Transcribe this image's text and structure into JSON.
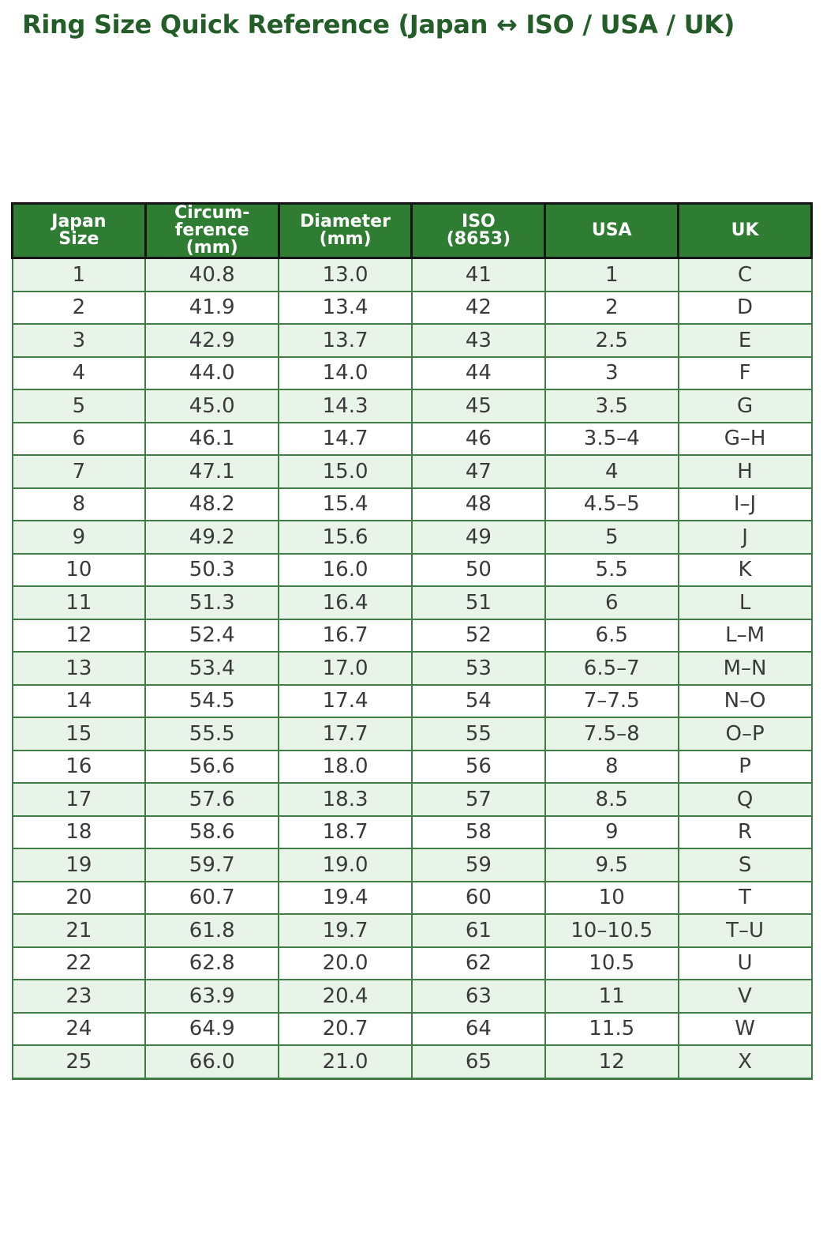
{
  "chart_data": {
    "type": "table",
    "title": "Ring Size Quick Reference (Japan ↔ ISO / USA / UK)",
    "columns": [
      {
        "key": "japan-size",
        "label": "Japan\nSize"
      },
      {
        "key": "circumference",
        "label": "Circum-\nference\n(mm)"
      },
      {
        "key": "diameter",
        "label": "Diameter\n(mm)"
      },
      {
        "key": "iso",
        "label": "ISO\n(8653)"
      },
      {
        "key": "usa",
        "label": "USA"
      },
      {
        "key": "uk",
        "label": "UK"
      }
    ],
    "rows": [
      [
        "1",
        "40.8",
        "13.0",
        "41",
        "1",
        "C"
      ],
      [
        "2",
        "41.9",
        "13.4",
        "42",
        "2",
        "D"
      ],
      [
        "3",
        "42.9",
        "13.7",
        "43",
        "2.5",
        "E"
      ],
      [
        "4",
        "44.0",
        "14.0",
        "44",
        "3",
        "F"
      ],
      [
        "5",
        "45.0",
        "14.3",
        "45",
        "3.5",
        "G"
      ],
      [
        "6",
        "46.1",
        "14.7",
        "46",
        "3.5–4",
        "G–H"
      ],
      [
        "7",
        "47.1",
        "15.0",
        "47",
        "4",
        "H"
      ],
      [
        "8",
        "48.2",
        "15.4",
        "48",
        "4.5–5",
        "I–J"
      ],
      [
        "9",
        "49.2",
        "15.6",
        "49",
        "5",
        "J"
      ],
      [
        "10",
        "50.3",
        "16.0",
        "50",
        "5.5",
        "K"
      ],
      [
        "11",
        "51.3",
        "16.4",
        "51",
        "6",
        "L"
      ],
      [
        "12",
        "52.4",
        "16.7",
        "52",
        "6.5",
        "L–M"
      ],
      [
        "13",
        "53.4",
        "17.0",
        "53",
        "6.5–7",
        "M–N"
      ],
      [
        "14",
        "54.5",
        "17.4",
        "54",
        "7–7.5",
        "N–O"
      ],
      [
        "15",
        "55.5",
        "17.7",
        "55",
        "7.5–8",
        "O–P"
      ],
      [
        "16",
        "56.6",
        "18.0",
        "56",
        "8",
        "P"
      ],
      [
        "17",
        "57.6",
        "18.3",
        "57",
        "8.5",
        "Q"
      ],
      [
        "18",
        "58.6",
        "18.7",
        "58",
        "9",
        "R"
      ],
      [
        "19",
        "59.7",
        "19.0",
        "59",
        "9.5",
        "S"
      ],
      [
        "20",
        "60.7",
        "19.4",
        "60",
        "10",
        "T"
      ],
      [
        "21",
        "61.8",
        "19.7",
        "61",
        "10–10.5",
        "T–U"
      ],
      [
        "22",
        "62.8",
        "20.0",
        "62",
        "10.5",
        "U"
      ],
      [
        "23",
        "63.9",
        "20.4",
        "63",
        "11",
        "V"
      ],
      [
        "24",
        "64.9",
        "20.7",
        "64",
        "11.5",
        "W"
      ],
      [
        "25",
        "66.0",
        "21.0",
        "65",
        "12",
        "X"
      ]
    ],
    "layout_hints": {
      "header_position": "top",
      "zebra_striping": true,
      "first_stripe": "light-green"
    }
  },
  "colors": {
    "title_text": "#235e28",
    "header_bg": "#2f7d32",
    "header_text": "#ffffff",
    "header_border": "#151515",
    "body_border": "#3f7d44",
    "row_alt_bg": "#e9f4e9",
    "row_bg": "#ffffff",
    "cell_text": "#3a3a3a"
  }
}
